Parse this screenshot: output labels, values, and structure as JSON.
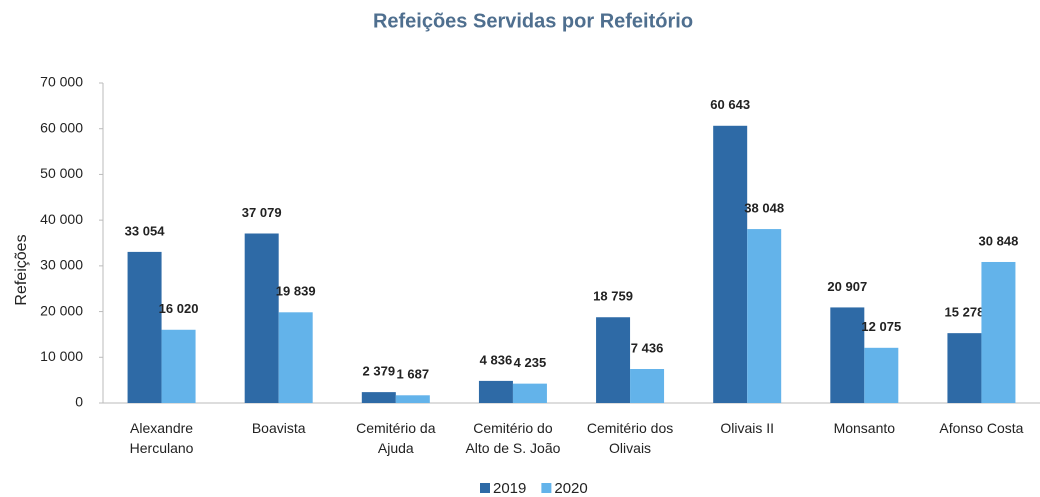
{
  "chart_data": {
    "type": "bar",
    "title": "Refeições Servidas por Refeitório",
    "y_label": "Refeições",
    "categories": [
      "Alexandre\nHerculano",
      "Boavista",
      "Cemitério da\nAjuda",
      "Cemitério do\nAlto de S. João",
      "Cemitério dos\nOlivais",
      "Olivais II",
      "Monsanto",
      "Afonso Costa"
    ],
    "series": [
      {
        "name": "2019",
        "color": "#2e6aa6",
        "values": [
          33054,
          37079,
          2379,
          4836,
          18759,
          60643,
          20907,
          15278
        ],
        "value_labels": [
          "33 054",
          "37 079",
          "2 379",
          "4 836",
          "18 759",
          "60 643",
          "20 907",
          "15 278"
        ]
      },
      {
        "name": "2020",
        "color": "#63b3ea",
        "values": [
          16020,
          19839,
          1687,
          4235,
          7436,
          38048,
          12075,
          30848
        ],
        "value_labels": [
          "16 020",
          "19 839",
          "1 687",
          "4 235",
          "7 436",
          "38 048",
          "12 075",
          "30 848"
        ]
      }
    ],
    "ylim": [
      0,
      70000
    ],
    "yticks": [
      {
        "value": 0,
        "label": "0"
      },
      {
        "value": 10000,
        "label": "10 000"
      },
      {
        "value": 20000,
        "label": "20 000"
      },
      {
        "value": 30000,
        "label": "30 000"
      },
      {
        "value": 40000,
        "label": "40 000"
      },
      {
        "value": 50000,
        "label": "50 000"
      },
      {
        "value": 60000,
        "label": "60 000"
      },
      {
        "value": 70000,
        "label": "70 000"
      }
    ],
    "grid": false,
    "legend": "bottom"
  }
}
